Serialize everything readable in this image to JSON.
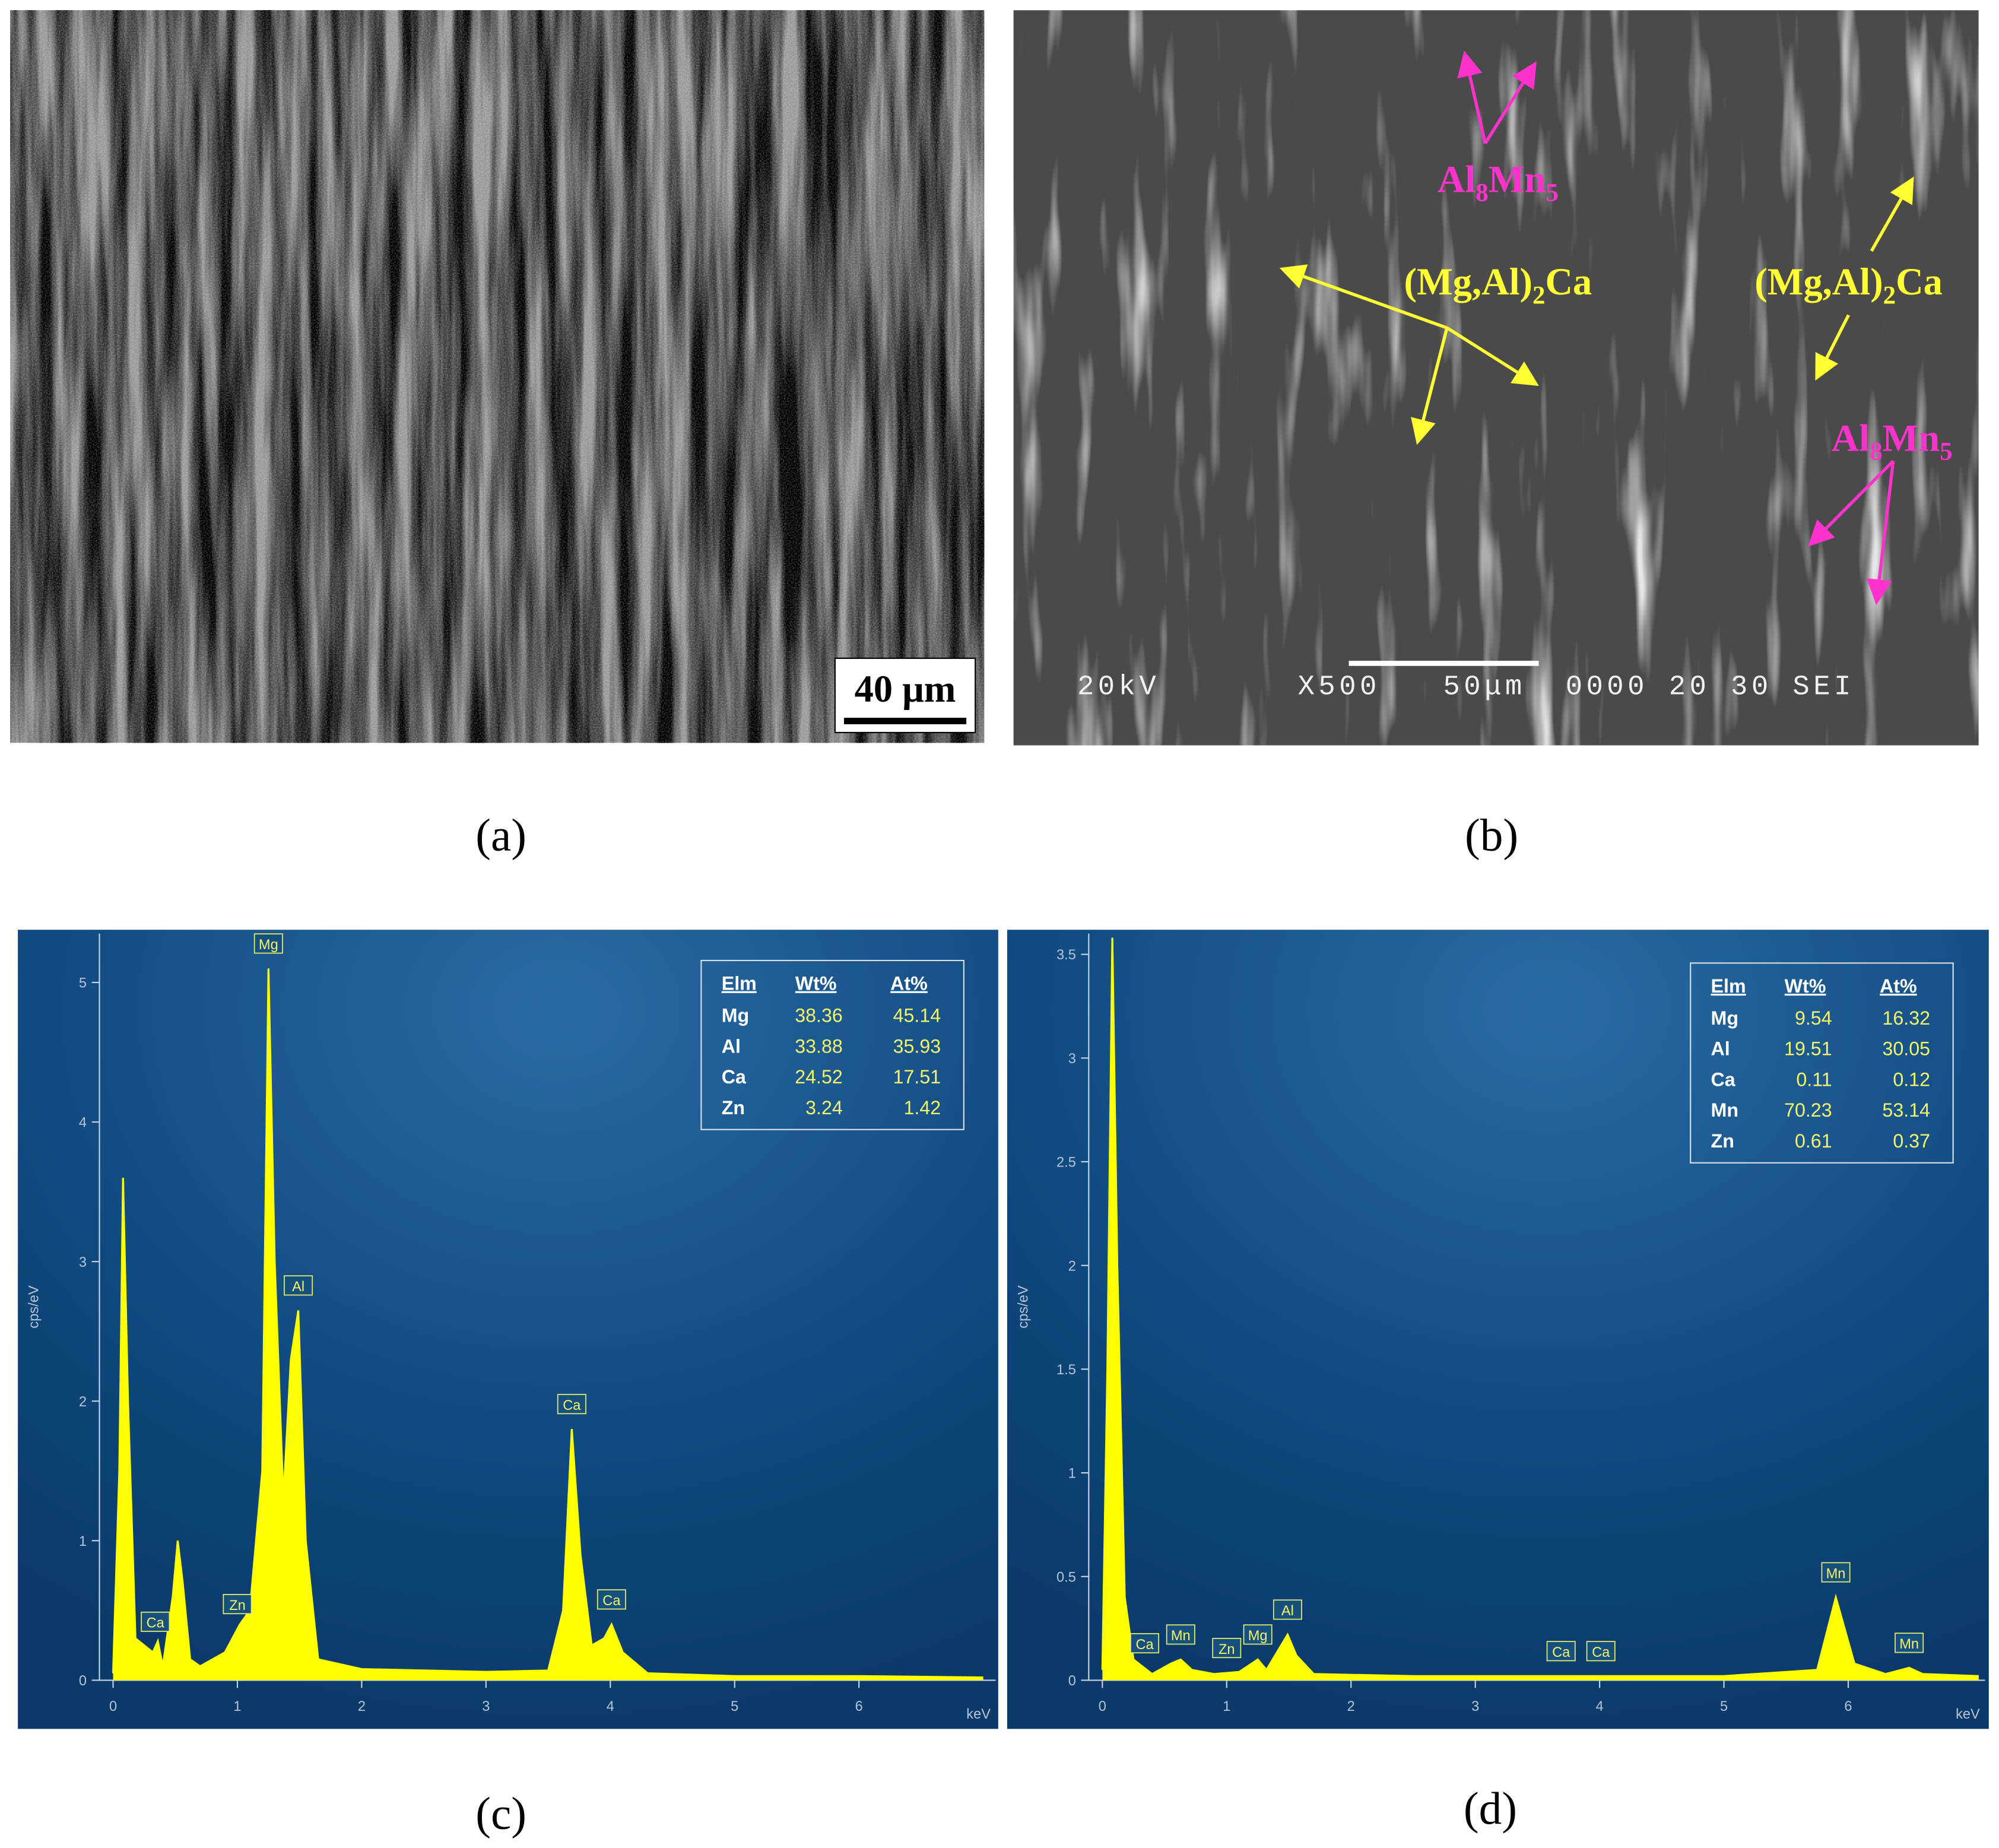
{
  "panels": [
    {
      "caption": "(a)",
      "scale_bar": "40 μm"
    },
    {
      "caption": "(b)",
      "annotations": [
        {
          "text": [
            "Al",
            "8",
            "Mn",
            "5"
          ],
          "color": "#ff33cc"
        },
        {
          "text": [
            "(Mg,Al)",
            "2",
            "Ca"
          ],
          "color": "#ffff33"
        },
        {
          "text": [
            "(Mg,Al)",
            "2",
            "Ca"
          ],
          "color": "#ffff33"
        },
        {
          "text": [
            "Al",
            "8",
            "Mn",
            "5"
          ],
          "color": "#ff33cc"
        }
      ],
      "sem_info": [
        "20kV",
        "X500",
        "50μm",
        "0000 20 30 SEI"
      ]
    }
  ],
  "chart_data": [
    {
      "type": "area",
      "caption": "(c)",
      "y_label": "cps/eV",
      "x_label": "keV",
      "color": "#ffff00",
      "xlim": [
        -0.12,
        7.1
      ],
      "ylim": [
        0,
        5.35
      ],
      "xticks": [
        0,
        1,
        2,
        3,
        4,
        5,
        6
      ],
      "yticks": [
        0,
        1,
        2,
        3,
        4,
        5
      ],
      "x": [
        0,
        0.05,
        0.08,
        0.12,
        0.18,
        0.25,
        0.32,
        0.36,
        0.4,
        0.48,
        0.52,
        0.56,
        0.62,
        0.7,
        0.9,
        1.02,
        1.1,
        1.2,
        1.25,
        1.3,
        1.37,
        1.43,
        1.49,
        1.55,
        1.65,
        2,
        3,
        3.5,
        3.62,
        3.69,
        3.76,
        3.85,
        3.95,
        4.01,
        4.1,
        4.3,
        5,
        6,
        7
      ],
      "values": [
        0.05,
        1.5,
        3.6,
        2.0,
        0.3,
        0.25,
        0.2,
        0.28,
        0.1,
        0.6,
        1.0,
        0.7,
        0.15,
        0.1,
        0.2,
        0.4,
        0.5,
        1.5,
        5.1,
        3.0,
        1.3,
        2.3,
        2.65,
        1.0,
        0.15,
        0.08,
        0.06,
        0.07,
        0.5,
        1.8,
        0.9,
        0.25,
        0.3,
        0.4,
        0.2,
        0.05,
        0.03,
        0.03,
        0.02
      ],
      "peak_labels": [
        {
          "label": "Ca",
          "x": 0.34
        },
        {
          "label": "Zn",
          "x": 1.0
        },
        {
          "label": "Mg",
          "x": 1.25
        },
        {
          "label": "Al",
          "x": 1.49
        },
        {
          "label": "Ca",
          "x": 3.69
        },
        {
          "label": "Ca",
          "x": 4.01
        }
      ],
      "table": {
        "header": [
          "Elm",
          "Wt%",
          "At%"
        ],
        "rows": [
          [
            "Mg",
            38.36,
            45.14
          ],
          [
            "Al",
            33.88,
            35.93
          ],
          [
            "Ca",
            24.52,
            17.51
          ],
          [
            "Zn",
            3.24,
            1.42
          ]
        ]
      }
    },
    {
      "type": "area",
      "caption": "(d)",
      "y_label": "cps/eV",
      "x_label": "keV",
      "color": "#ffff00",
      "xlim": [
        -0.12,
        7.1
      ],
      "ylim": [
        0,
        3.6
      ],
      "xticks": [
        0,
        1,
        2,
        3,
        4,
        5,
        6
      ],
      "yticks": [
        0,
        0.5,
        1,
        1.5,
        2,
        2.5,
        3,
        3.5
      ],
      "x": [
        0,
        0.04,
        0.08,
        0.12,
        0.18,
        0.25,
        0.4,
        0.55,
        0.63,
        0.72,
        0.9,
        1.1,
        1.25,
        1.32,
        1.42,
        1.49,
        1.56,
        1.7,
        2.5,
        3.7,
        4.0,
        5,
        5.75,
        5.9,
        6.05,
        6.3,
        6.49,
        6.6,
        7.05
      ],
      "values": [
        0.05,
        1.5,
        3.58,
        2.0,
        0.4,
        0.1,
        0.03,
        0.08,
        0.1,
        0.05,
        0.03,
        0.04,
        0.1,
        0.05,
        0.15,
        0.22,
        0.12,
        0.03,
        0.02,
        0.02,
        0.02,
        0.02,
        0.05,
        0.4,
        0.08,
        0.03,
        0.06,
        0.03,
        0.02
      ],
      "peak_labels": [
        {
          "label": "Ca",
          "x": 0.34
        },
        {
          "label": "Mn",
          "x": 0.63
        },
        {
          "label": "Zn",
          "x": 1.0
        },
        {
          "label": "Mg",
          "x": 1.25
        },
        {
          "label": "Al",
          "x": 1.49
        },
        {
          "label": "Ca",
          "x": 3.69
        },
        {
          "label": "Ca",
          "x": 4.01
        },
        {
          "label": "Mn",
          "x": 5.9
        },
        {
          "label": "Mn",
          "x": 6.49
        }
      ],
      "table": {
        "header": [
          "Elm",
          "Wt%",
          "At%"
        ],
        "rows": [
          [
            "Mg",
            9.54,
            16.32
          ],
          [
            "Al",
            19.51,
            30.05
          ],
          [
            "Ca",
            0.11,
            0.12
          ],
          [
            "Mn",
            70.23,
            53.14
          ],
          [
            "Zn",
            0.61,
            0.37
          ]
        ]
      }
    }
  ]
}
